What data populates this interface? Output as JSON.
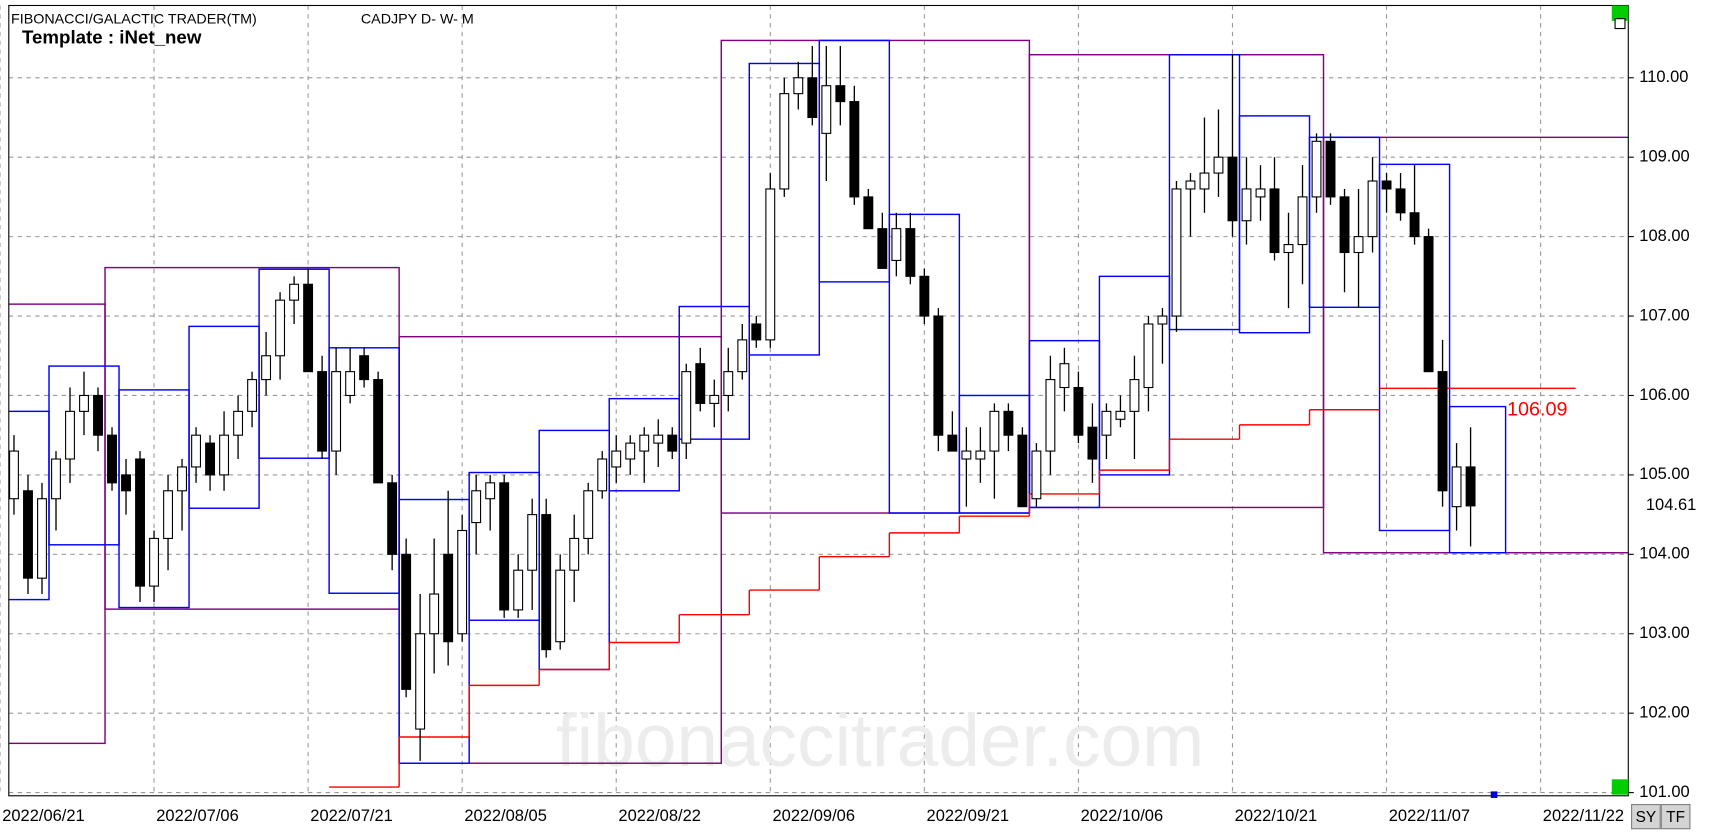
{
  "chart_data": {
    "type": "candlestick",
    "title": "FIBONACCI/GALACTIC TRADER(TM)",
    "symbol": "CADJPY D- W- M",
    "template": "Template : iNet_new",
    "watermark": "fibonaccitrader.com",
    "buttons": [
      "SY",
      "TF"
    ],
    "xlim": [
      0.63,
      116.26
    ],
    "ylim": [
      100.96,
      110.91
    ],
    "xticks": [
      {
        "value": 0,
        "label": "2022/06/21"
      },
      {
        "value": 11,
        "label": "2022/07/06"
      },
      {
        "value": 22,
        "label": "2022/07/21"
      },
      {
        "value": 33,
        "label": "2022/08/05"
      },
      {
        "value": 44,
        "label": "2022/08/22"
      },
      {
        "value": 55,
        "label": "2022/09/06"
      },
      {
        "value": 66,
        "label": "2022/09/21"
      },
      {
        "value": 77,
        "label": "2022/10/06"
      },
      {
        "value": 88,
        "label": "2022/10/21"
      },
      {
        "value": 99,
        "label": "2022/11/07"
      },
      {
        "value": 110,
        "label": "2022/11/22"
      }
    ],
    "yticks": [
      {
        "value": 101,
        "label": "101.00"
      },
      {
        "value": 102,
        "label": "102.00"
      },
      {
        "value": 103,
        "label": "103.00"
      },
      {
        "value": 104,
        "label": "104.00"
      },
      {
        "value": 105,
        "label": "105.00"
      },
      {
        "value": 106,
        "label": "106.00"
      },
      {
        "value": 107,
        "label": "107.00"
      },
      {
        "value": 108,
        "label": "108.00"
      },
      {
        "value": 109,
        "label": "109.00"
      },
      {
        "value": 110,
        "label": "110.00"
      }
    ],
    "grid": true,
    "ohlc": [
      [
        104.0,
        105.5,
        103.9,
        105.4
      ],
      [
        104.7,
        105.5,
        104.5,
        105.3
      ],
      [
        104.8,
        105.0,
        103.5,
        103.7
      ],
      [
        103.7,
        104.9,
        103.5,
        104.7
      ],
      [
        104.7,
        105.3,
        104.3,
        105.2
      ],
      [
        105.2,
        106.1,
        104.9,
        105.8
      ],
      [
        105.8,
        106.3,
        105.5,
        106.0
      ],
      [
        106.0,
        106.1,
        105.3,
        105.5
      ],
      [
        105.5,
        105.6,
        104.8,
        104.9
      ],
      [
        105.0,
        105.2,
        104.5,
        104.8
      ],
      [
        105.2,
        105.3,
        103.4,
        103.6
      ],
      [
        103.6,
        104.3,
        103.4,
        104.2
      ],
      [
        104.2,
        105.0,
        103.8,
        104.8
      ],
      [
        104.8,
        105.2,
        104.3,
        105.1
      ],
      [
        105.1,
        105.6,
        104.9,
        105.5
      ],
      [
        105.4,
        105.5,
        104.8,
        105.0
      ],
      [
        105.0,
        105.8,
        104.8,
        105.5
      ],
      [
        105.5,
        106.0,
        105.2,
        105.8
      ],
      [
        105.8,
        106.3,
        105.6,
        106.2
      ],
      [
        106.2,
        106.8,
        106.0,
        106.5
      ],
      [
        106.5,
        107.3,
        106.2,
        107.2
      ],
      [
        107.2,
        107.5,
        106.9,
        107.4
      ],
      [
        107.4,
        107.6,
        106.3,
        106.3
      ],
      [
        106.3,
        106.5,
        105.2,
        105.3
      ],
      [
        105.3,
        106.6,
        105.0,
        106.3
      ],
      [
        106.0,
        106.6,
        105.9,
        106.3
      ],
      [
        106.5,
        106.6,
        106.1,
        106.2
      ],
      [
        106.2,
        106.3,
        104.9,
        104.9
      ],
      [
        104.9,
        105.0,
        103.8,
        104.0
      ],
      [
        104.0,
        104.2,
        102.2,
        102.3
      ],
      [
        101.8,
        103.5,
        101.4,
        103.0
      ],
      [
        103.0,
        104.2,
        102.5,
        103.5
      ],
      [
        104.0,
        104.8,
        102.6,
        102.9
      ],
      [
        103.0,
        104.5,
        102.9,
        104.3
      ],
      [
        104.4,
        105.0,
        104.0,
        104.8
      ],
      [
        104.7,
        105.0,
        104.3,
        104.9
      ],
      [
        104.9,
        105.0,
        103.2,
        103.3
      ],
      [
        103.3,
        104.0,
        103.2,
        103.8
      ],
      [
        103.8,
        104.7,
        103.3,
        104.5
      ],
      [
        104.5,
        104.7,
        102.7,
        102.8
      ],
      [
        102.9,
        104.0,
        102.8,
        103.8
      ],
      [
        103.8,
        104.5,
        103.4,
        104.2
      ],
      [
        104.2,
        104.9,
        104.0,
        104.8
      ],
      [
        104.8,
        105.3,
        104.7,
        105.2
      ],
      [
        105.1,
        105.5,
        104.9,
        105.3
      ],
      [
        105.2,
        105.5,
        105.0,
        105.4
      ],
      [
        105.3,
        105.6,
        104.9,
        105.5
      ],
      [
        105.4,
        105.7,
        105.1,
        105.5
      ],
      [
        105.5,
        105.6,
        105.2,
        105.3
      ],
      [
        105.4,
        106.4,
        105.2,
        106.3
      ],
      [
        106.4,
        106.6,
        105.8,
        105.9
      ],
      [
        105.9,
        106.2,
        105.6,
        106.0
      ],
      [
        106.0,
        106.6,
        105.8,
        106.3
      ],
      [
        106.3,
        106.9,
        106.2,
        106.7
      ],
      [
        106.9,
        107.0,
        106.6,
        106.7
      ],
      [
        106.7,
        108.8,
        106.6,
        108.6
      ],
      [
        108.6,
        110.0,
        108.5,
        109.8
      ],
      [
        109.8,
        110.2,
        109.6,
        110.0
      ],
      [
        110.0,
        110.4,
        109.4,
        109.5
      ],
      [
        109.3,
        110.4,
        108.7,
        109.9
      ],
      [
        109.9,
        110.4,
        109.4,
        109.7
      ],
      [
        109.7,
        109.9,
        108.4,
        108.5
      ],
      [
        108.5,
        108.6,
        108.1,
        108.1
      ],
      [
        108.1,
        108.3,
        107.6,
        107.6
      ],
      [
        107.7,
        108.3,
        107.5,
        108.1
      ],
      [
        108.1,
        108.3,
        107.4,
        107.5
      ],
      [
        107.5,
        107.6,
        106.9,
        107.0
      ],
      [
        107.0,
        107.1,
        105.3,
        105.5
      ],
      [
        105.5,
        105.8,
        105.3,
        105.3
      ],
      [
        105.2,
        105.6,
        104.6,
        105.3
      ],
      [
        105.2,
        105.6,
        104.9,
        105.3
      ],
      [
        105.3,
        105.9,
        104.7,
        105.8
      ],
      [
        105.8,
        105.9,
        105.3,
        105.5
      ],
      [
        105.5,
        105.6,
        104.6,
        104.6
      ],
      [
        104.7,
        105.4,
        104.6,
        105.3
      ],
      [
        105.3,
        106.5,
        105.0,
        106.2
      ],
      [
        106.1,
        106.6,
        105.8,
        106.4
      ],
      [
        106.1,
        106.3,
        105.4,
        105.5
      ],
      [
        105.6,
        105.9,
        104.9,
        105.2
      ],
      [
        105.5,
        105.9,
        105.2,
        105.8
      ],
      [
        105.7,
        106.0,
        105.6,
        105.8
      ],
      [
        105.8,
        106.5,
        105.2,
        106.2
      ],
      [
        106.1,
        107.0,
        105.8,
        106.9
      ],
      [
        106.9,
        107.1,
        106.4,
        107.0
      ],
      [
        107.0,
        108.7,
        106.8,
        108.6
      ],
      [
        108.6,
        108.8,
        108.0,
        108.7
      ],
      [
        108.6,
        109.5,
        108.3,
        108.8
      ],
      [
        108.8,
        109.6,
        108.5,
        109.0
      ],
      [
        109.0,
        110.3,
        108.0,
        108.2
      ],
      [
        108.2,
        109.0,
        107.9,
        108.6
      ],
      [
        108.5,
        108.9,
        108.2,
        108.6
      ],
      [
        108.6,
        109.0,
        107.7,
        107.8
      ],
      [
        107.8,
        108.3,
        107.1,
        107.9
      ],
      [
        107.9,
        108.9,
        107.4,
        108.5
      ],
      [
        108.5,
        109.3,
        108.3,
        109.2
      ],
      [
        109.2,
        109.3,
        108.4,
        108.5
      ],
      [
        108.5,
        108.6,
        107.3,
        107.8
      ],
      [
        107.8,
        108.6,
        107.1,
        108.0
      ],
      [
        108.0,
        109.0,
        107.8,
        108.7
      ],
      [
        108.7,
        108.8,
        108.3,
        108.6
      ],
      [
        108.6,
        108.8,
        108.2,
        108.3
      ],
      [
        108.3,
        108.9,
        107.9,
        108.0
      ],
      [
        108.0,
        108.1,
        106.3,
        106.3
      ],
      [
        106.3,
        106.7,
        104.6,
        104.8
      ],
      [
        104.6,
        105.4,
        104.3,
        105.1
      ],
      [
        105.1,
        105.6,
        104.1,
        104.61
      ]
    ],
    "last_price": 104.61,
    "weekly_color": "#0000ff",
    "weekly_boxes": [
      {
        "from": 0,
        "to": 3,
        "high": 105.8,
        "low": 103.43
      },
      {
        "from": 4,
        "to": 8,
        "high": 106.37,
        "low": 104.12
      },
      {
        "from": 9,
        "to": 13,
        "high": 106.07,
        "low": 103.33
      },
      {
        "from": 14,
        "to": 18,
        "high": 106.87,
        "low": 104.58
      },
      {
        "from": 19,
        "to": 23,
        "high": 107.59,
        "low": 105.21
      },
      {
        "from": 24,
        "to": 28,
        "high": 106.6,
        "low": 103.51
      },
      {
        "from": 29,
        "to": 33,
        "high": 104.69,
        "low": 101.37
      },
      {
        "from": 34,
        "to": 38,
        "high": 105.03,
        "low": 103.17
      },
      {
        "from": 39,
        "to": 43,
        "high": 105.56,
        "low": 102.55
      },
      {
        "from": 44,
        "to": 48,
        "high": 105.96,
        "low": 104.8
      },
      {
        "from": 49,
        "to": 53,
        "high": 107.12,
        "low": 105.45
      },
      {
        "from": 54,
        "to": 58,
        "high": 110.18,
        "low": 106.51
      },
      {
        "from": 59,
        "to": 63,
        "high": 110.47,
        "low": 107.43
      },
      {
        "from": 64,
        "to": 68,
        "high": 108.28,
        "low": 104.52
      },
      {
        "from": 69,
        "to": 73,
        "high": 106.0,
        "low": 104.52
      },
      {
        "from": 74,
        "to": 78,
        "high": 106.69,
        "low": 104.59
      },
      {
        "from": 79,
        "to": 83,
        "high": 107.5,
        "low": 105.0
      },
      {
        "from": 84,
        "to": 88,
        "high": 110.29,
        "low": 106.83
      },
      {
        "from": 89,
        "to": 93,
        "high": 109.52,
        "low": 106.79
      },
      {
        "from": 94,
        "to": 98,
        "high": 109.25,
        "low": 107.11
      },
      {
        "from": 99,
        "to": 103,
        "high": 108.91,
        "low": 104.3
      },
      {
        "from": 104,
        "to": 107,
        "high": 105.86,
        "low": 104.02
      }
    ],
    "monthly_color": "#800080",
    "monthly_boxes": [
      {
        "from": 0,
        "to": 7,
        "high": 107.15,
        "low": 101.62
      },
      {
        "from": 8,
        "to": 28,
        "high": 107.61,
        "low": 103.31
      },
      {
        "from": 29,
        "to": 51,
        "high": 106.74,
        "low": 101.37
      },
      {
        "from": 52,
        "to": 73,
        "high": 110.47,
        "low": 104.52
      },
      {
        "from": 74,
        "to": 94,
        "high": 110.29,
        "low": 104.59
      },
      {
        "from": 95,
        "to": 116,
        "high": 109.25,
        "low": 104.02
      }
    ],
    "step_color": "#ff0000",
    "steps": [
      {
        "from": 24,
        "to": 28,
        "value": 101.07
      },
      {
        "from": 29,
        "to": 33,
        "value": 101.7
      },
      {
        "from": 34,
        "to": 38,
        "value": 102.35
      },
      {
        "from": 39,
        "to": 43,
        "value": 102.55
      },
      {
        "from": 44,
        "to": 48,
        "value": 102.89
      },
      {
        "from": 49,
        "to": 53,
        "value": 103.24
      },
      {
        "from": 54,
        "to": 58,
        "value": 103.55
      },
      {
        "from": 59,
        "to": 63,
        "value": 103.97
      },
      {
        "from": 64,
        "to": 68,
        "value": 104.27
      },
      {
        "from": 69,
        "to": 73,
        "value": 104.48
      },
      {
        "from": 74,
        "to": 78,
        "value": 104.76
      },
      {
        "from": 79,
        "to": 83,
        "value": 105.06
      },
      {
        "from": 84,
        "to": 88,
        "value": 105.45
      },
      {
        "from": 89,
        "to": 93,
        "value": 105.63
      },
      {
        "from": 94,
        "to": 98,
        "value": 105.82
      }
    ],
    "level": {
      "value": 106.09,
      "from": 99,
      "to": 112
    }
  }
}
